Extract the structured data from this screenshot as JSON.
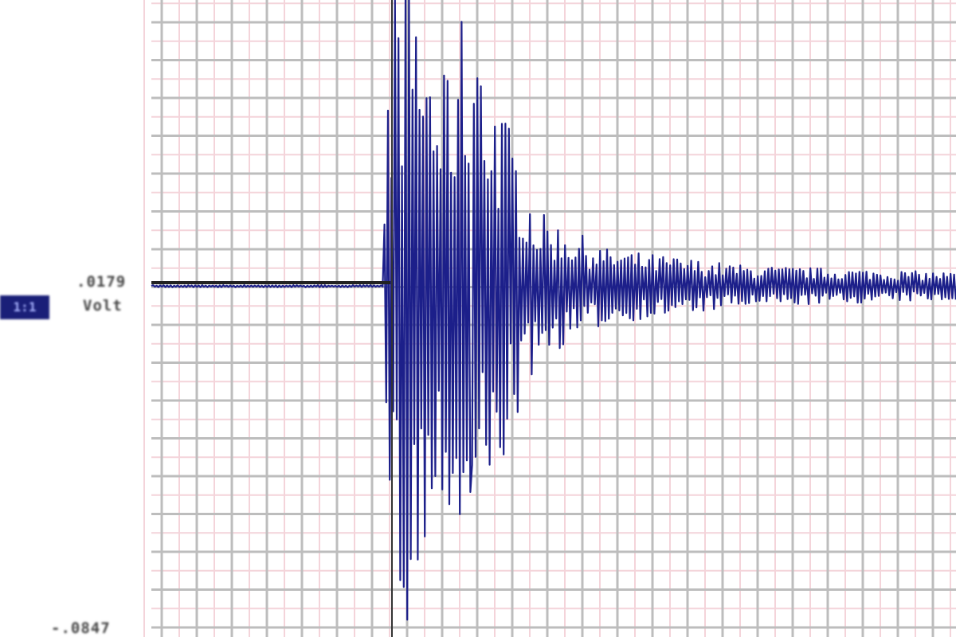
{
  "chart_data": {
    "type": "line",
    "title": "",
    "xlabel": "",
    "ylabel": "",
    "y_tick_labels": {
      "top": ".0179",
      "unit": "Volt",
      "bottom": "-.0847"
    },
    "y_ticks": [
      0.0179,
      -0.0847
    ],
    "ylim": [
      -0.0847,
      0.1016
    ],
    "baseline": 0.0179,
    "grid": true,
    "scale_badge": "1:1",
    "series": [
      {
        "trace_color": "#1c1f8a",
        "envelope": {
          "description_points": [
            {
              "t": 0,
              "amp": 0.0003
            },
            {
              "t": 6.6,
              "amp": 0.0003
            },
            {
              "t": 6.8,
              "amp": 0.084
            },
            {
              "t": 7.3,
              "amp": 0.098
            },
            {
              "t": 8.3,
              "amp": 0.06
            },
            {
              "t": 8.9,
              "amp": 0.082
            },
            {
              "t": 9.8,
              "amp": 0.06
            },
            {
              "t": 11.0,
              "amp": 0.022
            },
            {
              "t": 13.0,
              "amp": 0.011
            },
            {
              "t": 17.0,
              "amp": 0.006
            },
            {
              "t": 23.0,
              "amp": 0.004
            }
          ]
        }
      }
    ]
  },
  "colors": {
    "grid_major": "#bdbdbd",
    "grid_minor": "#f4d4da",
    "trace": "#1c1f8a",
    "badge": "#1a1f78"
  }
}
